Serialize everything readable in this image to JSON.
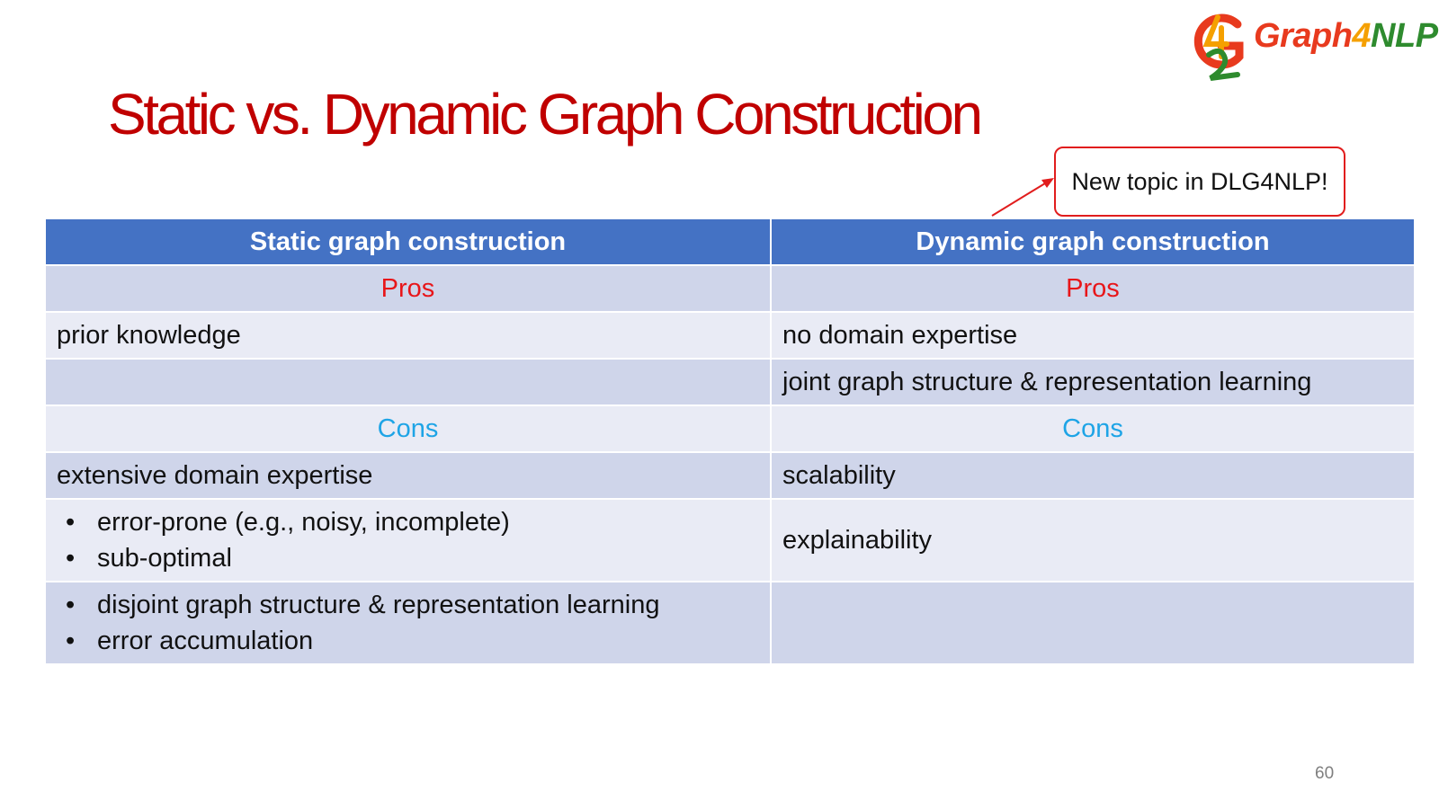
{
  "slide": {
    "title": "Static vs. Dynamic Graph Construction",
    "page_number": "60"
  },
  "logo": {
    "text_part1": "Graph",
    "text_part2": "4",
    "text_part3": "NLP",
    "colors": {
      "red": "#e83a1e",
      "orange": "#f5a000",
      "green": "#2e8b2e"
    }
  },
  "callout": {
    "text": "New topic in DLG4NLP!",
    "border_color": "#e11d1d"
  },
  "table": {
    "headers": [
      "Static graph construction",
      "Dynamic graph construction"
    ],
    "pros_label": "Pros",
    "cons_label": "Cons",
    "pros_rows": [
      [
        "prior knowledge",
        "no domain expertise"
      ],
      [
        "",
        "joint graph structure & representation learning"
      ]
    ],
    "cons_rows": [
      [
        "extensive domain expertise",
        "scalability"
      ]
    ],
    "cons_bullets_1": [
      "error-prone (e.g., noisy, incomplete)",
      "sub-optimal"
    ],
    "cons_right_1": "explainability",
    "cons_bullets_2": [
      "disjoint graph structure & representation learning",
      "error accumulation"
    ],
    "cons_right_2": "",
    "colors": {
      "header_bg": "#4472c4",
      "row_shade": "#cfd5ea",
      "row_light": "#e9ebf5",
      "pros": "#e8161a",
      "cons": "#1ea4e6"
    }
  }
}
